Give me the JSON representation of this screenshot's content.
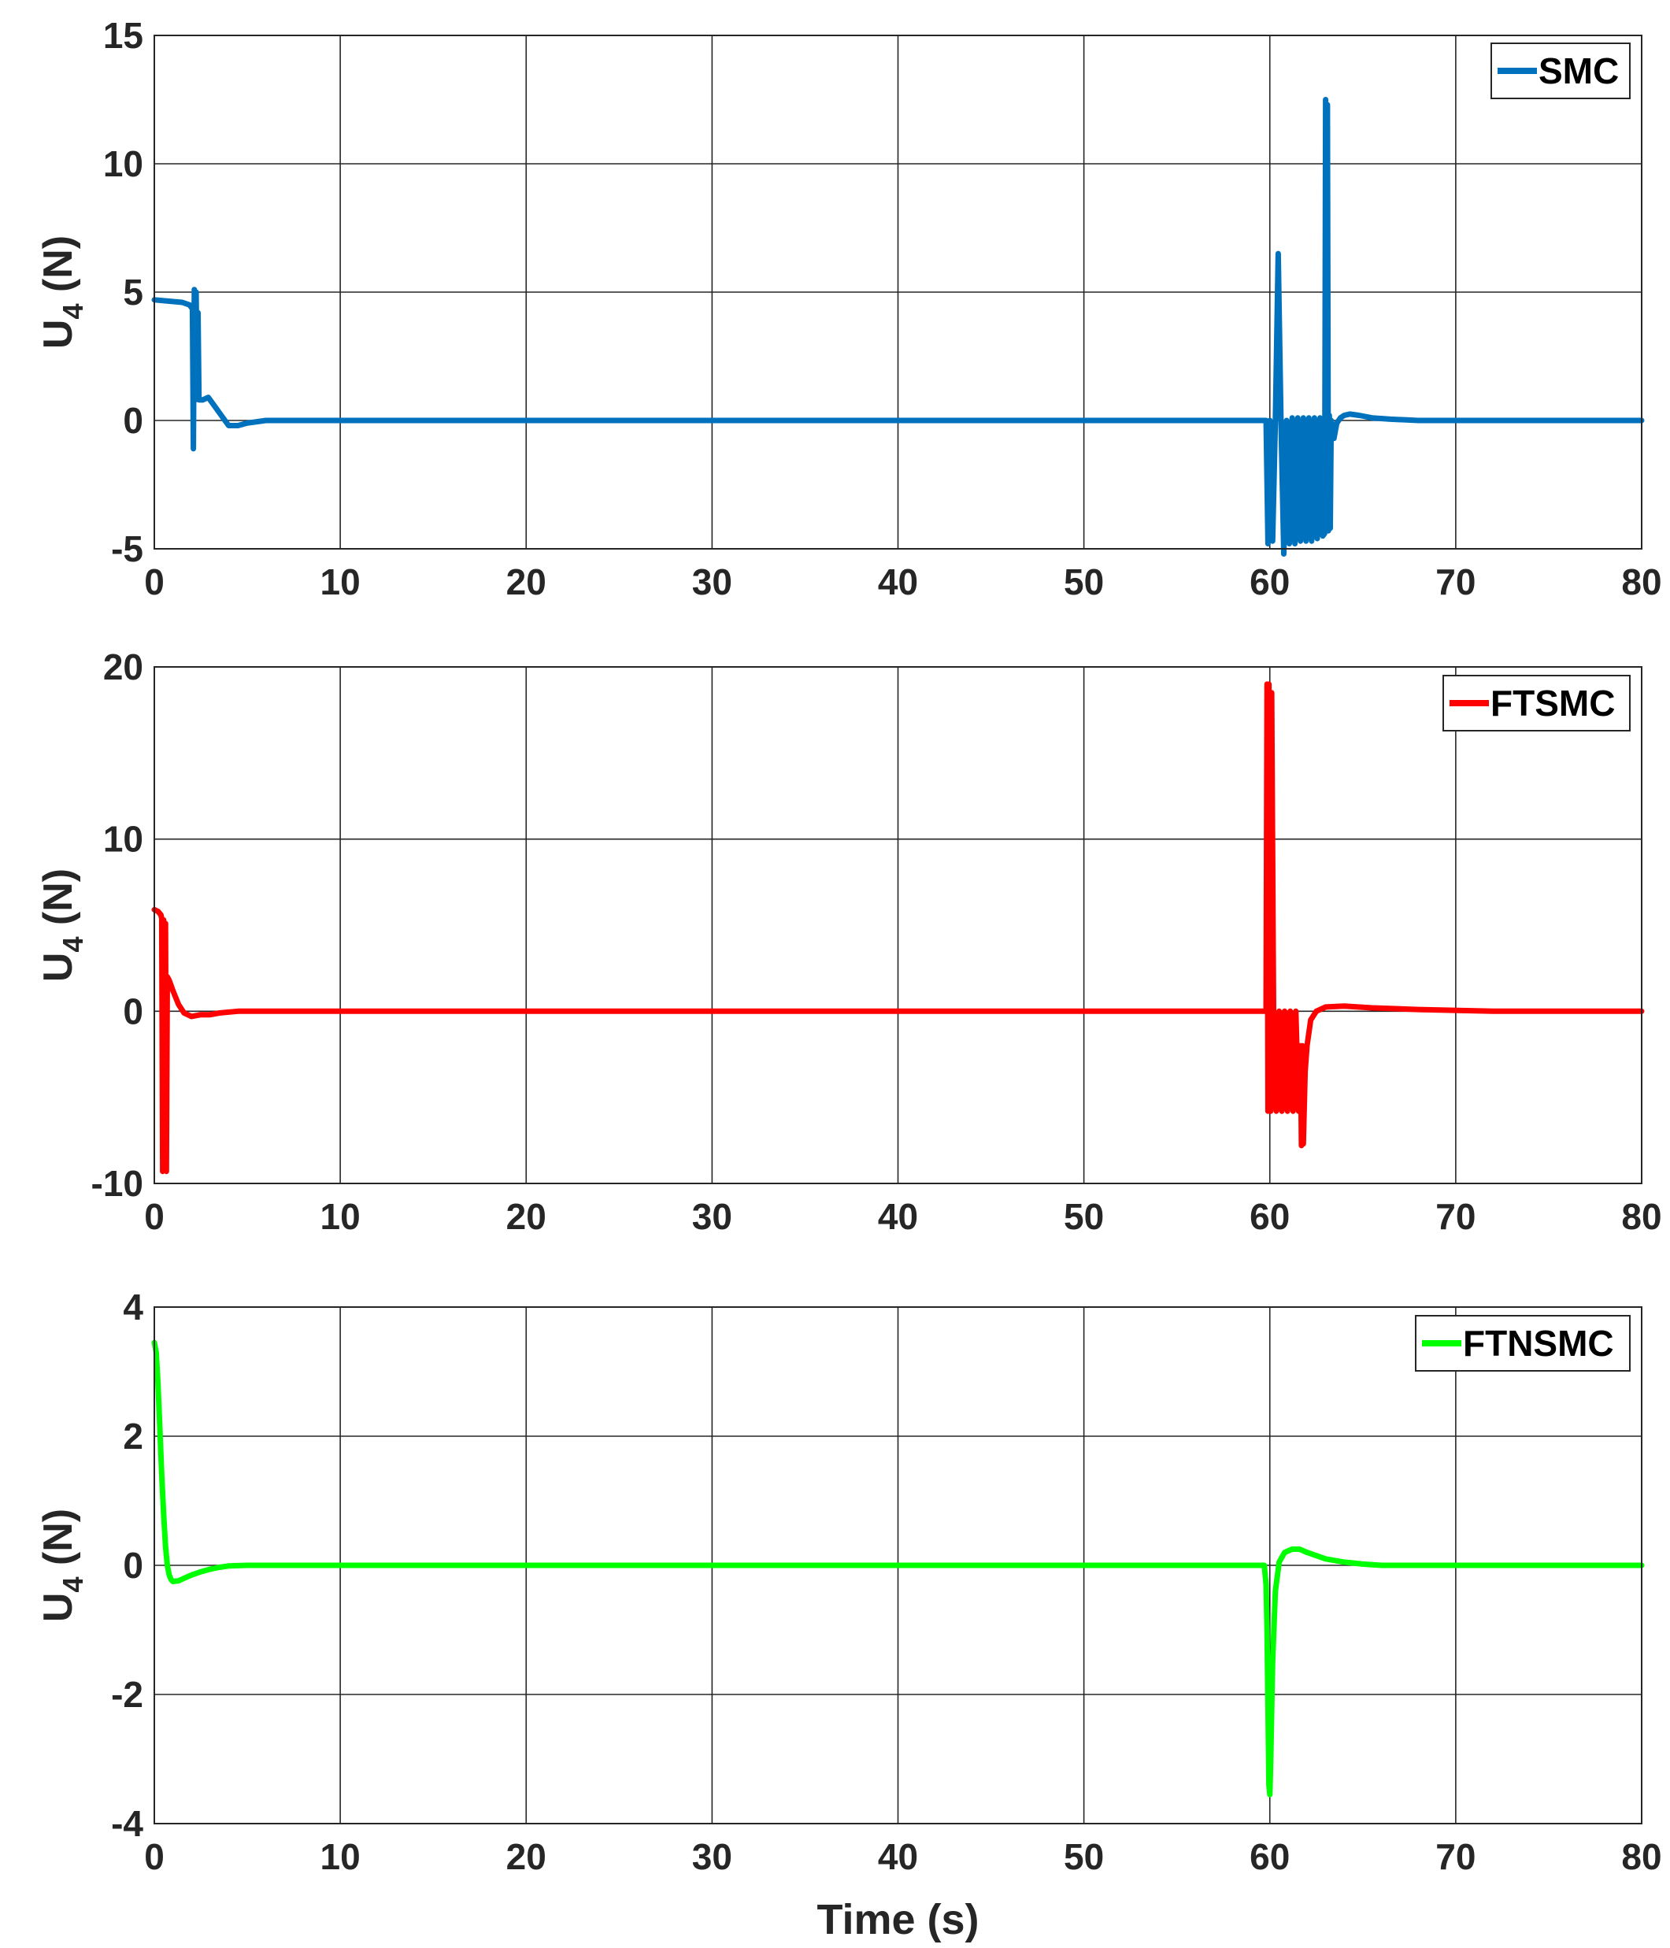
{
  "chart_data": [
    {
      "type": "line",
      "ylabel": "U",
      "ylabel_subscript": "4",
      "ylabel_unit": " (N)",
      "xlabel": "",
      "xlim": [
        0,
        80
      ],
      "ylim": [
        -5,
        15
      ],
      "xticks": [
        "0",
        "10",
        "20",
        "30",
        "40",
        "50",
        "60",
        "70",
        "80"
      ],
      "yticks": [
        "15",
        "10",
        "5",
        "0",
        "-5"
      ],
      "ytick_values": [
        15,
        10,
        5,
        0,
        -5
      ],
      "grid": true,
      "legend_position": "top-right",
      "series": [
        {
          "name": "SMC",
          "color": "#0072BD",
          "x": [
            0,
            1.5,
            1.9,
            2.0,
            2.05,
            2.1,
            2.15,
            2.2,
            2.25,
            2.3,
            2.35,
            2.4,
            2.6,
            2.9,
            3.2,
            3.6,
            4.0,
            4.5,
            5.0,
            6.0,
            8.0,
            20,
            40,
            59.8,
            59.9,
            60.0,
            60.15,
            60.3,
            60.45,
            60.6,
            60.75,
            60.9,
            61.05,
            61.2,
            61.35,
            61.5,
            61.65,
            61.8,
            61.95,
            62.1,
            62.25,
            62.4,
            62.55,
            62.7,
            62.85,
            62.95,
            63.0,
            63.05,
            63.1,
            63.15,
            63.2,
            63.25,
            63.3,
            63.45,
            63.6,
            63.8,
            64.0,
            64.3,
            64.8,
            65.5,
            66.5,
            68,
            70,
            80
          ],
          "values": [
            4.7,
            4.6,
            4.5,
            4.4,
            4.4,
            -1.1,
            5.1,
            0.8,
            5.0,
            0.9,
            4.2,
            0.8,
            0.8,
            0.9,
            0.6,
            0.2,
            -0.2,
            -0.2,
            -0.1,
            0.0,
            0.0,
            0.0,
            0.0,
            0.0,
            -4.8,
            0.0,
            -4.7,
            0.0,
            6.5,
            0.0,
            -5.2,
            0.0,
            -4.8,
            0.1,
            -4.8,
            0.1,
            -4.7,
            0.1,
            -4.7,
            0.1,
            -4.7,
            0.1,
            -4.6,
            0.1,
            -4.5,
            -4.4,
            12.5,
            -4.3,
            12.3,
            -4.3,
            0.2,
            -4.2,
            0.0,
            -0.7,
            -0.1,
            0.1,
            0.2,
            0.25,
            0.2,
            0.1,
            0.05,
            0.0,
            0.0,
            0.0
          ]
        }
      ]
    },
    {
      "type": "line",
      "ylabel": "U",
      "ylabel_subscript": "4",
      "ylabel_unit": " (N)",
      "xlabel": "",
      "xlim": [
        0,
        80
      ],
      "ylim": [
        -10,
        20
      ],
      "xticks": [
        "0",
        "10",
        "20",
        "30",
        "40",
        "50",
        "60",
        "70",
        "80"
      ],
      "yticks": [
        "20",
        "10",
        "0",
        "-10"
      ],
      "ytick_values": [
        20,
        10,
        0,
        -10
      ],
      "grid": true,
      "legend_position": "top-right",
      "series": [
        {
          "name": "FTSMC",
          "color": "#FF0000",
          "x": [
            0,
            0.2,
            0.35,
            0.4,
            0.45,
            0.5,
            0.55,
            0.6,
            0.65,
            0.7,
            0.8,
            1.0,
            1.3,
            1.6,
            2.0,
            2.5,
            3.0,
            3.5,
            4.5,
            6,
            10,
            30,
            59.7,
            59.8,
            59.85,
            59.9,
            59.95,
            60.0,
            60.05,
            60.1,
            60.2,
            60.35,
            60.5,
            60.65,
            60.8,
            60.95,
            61.1,
            61.25,
            61.4,
            61.55,
            61.65,
            61.7,
            61.75,
            61.8,
            61.9,
            62.0,
            62.2,
            62.5,
            63.0,
            64.0,
            65.5,
            68,
            72,
            80
          ],
          "values": [
            5.9,
            5.8,
            5.6,
            5.4,
            -9.3,
            5.3,
            -9.2,
            5.1,
            -9.3,
            2.0,
            1.8,
            1.2,
            0.4,
            -0.1,
            -0.3,
            -0.2,
            -0.2,
            -0.1,
            0.0,
            0.0,
            0.0,
            0.0,
            0.0,
            0.0,
            19.0,
            -5.8,
            19.0,
            0.0,
            -5.8,
            18.5,
            0.0,
            -5.8,
            0.0,
            -5.8,
            0.0,
            -5.8,
            0.0,
            -5.8,
            0.0,
            -5.8,
            -2.0,
            -7.8,
            -2.0,
            -7.7,
            -3.5,
            -2.0,
            -0.5,
            0.0,
            0.25,
            0.3,
            0.2,
            0.1,
            0.0,
            0.0
          ]
        }
      ]
    },
    {
      "type": "line",
      "ylabel": "U",
      "ylabel_subscript": "4",
      "ylabel_unit": " (N)",
      "xlabel": "Time (s)",
      "xlim": [
        0,
        80
      ],
      "ylim": [
        -4,
        4
      ],
      "xticks": [
        "0",
        "10",
        "20",
        "30",
        "40",
        "50",
        "60",
        "70",
        "80"
      ],
      "yticks": [
        "4",
        "2",
        "0",
        "-2",
        "-4"
      ],
      "ytick_values": [
        4,
        2,
        0,
        -2,
        -4
      ],
      "grid": true,
      "legend_position": "top-right",
      "series": [
        {
          "name": "FTNSMC",
          "color": "#00FF00",
          "x": [
            0,
            0.1,
            0.2,
            0.3,
            0.4,
            0.5,
            0.6,
            0.7,
            0.8,
            0.9,
            1.0,
            1.3,
            1.6,
            2.0,
            2.5,
            3.0,
            3.5,
            4.0,
            5.0,
            6.0,
            8.0,
            10,
            30,
            59.7,
            59.8,
            59.85,
            59.9,
            59.95,
            60.0,
            60.05,
            60.15,
            60.3,
            60.5,
            60.8,
            61.2,
            61.6,
            62.0,
            62.5,
            63.0,
            64.0,
            65.0,
            66.0,
            68,
            72,
            80
          ],
          "values": [
            3.45,
            3.3,
            2.8,
            2.1,
            1.4,
            0.8,
            0.3,
            0.0,
            -0.15,
            -0.22,
            -0.25,
            -0.24,
            -0.2,
            -0.15,
            -0.1,
            -0.06,
            -0.03,
            -0.01,
            0.0,
            0.0,
            0.0,
            0.0,
            0.0,
            0.0,
            -0.3,
            -1.0,
            -2.2,
            -3.4,
            -3.55,
            -3.0,
            -1.5,
            -0.4,
            0.05,
            0.2,
            0.25,
            0.25,
            0.2,
            0.15,
            0.1,
            0.05,
            0.02,
            0.0,
            0.0,
            0.0,
            0.0
          ]
        }
      ]
    }
  ]
}
